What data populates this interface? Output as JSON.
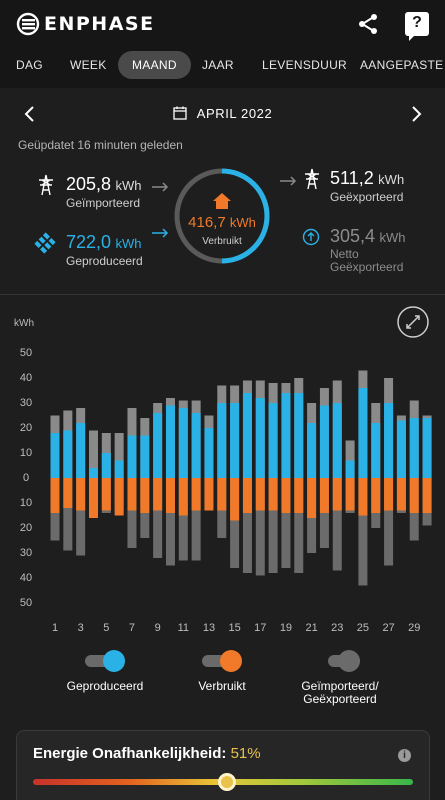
{
  "app": {
    "brand": "ENPHASE"
  },
  "tabs": [
    {
      "label": "DAG",
      "active": false
    },
    {
      "label": "WEEK",
      "active": false
    },
    {
      "label": "MAAND",
      "active": true
    },
    {
      "label": "JAAR",
      "active": false
    },
    {
      "label": "LEVENSDUUR",
      "active": false
    },
    {
      "label": "AANGEPASTE",
      "active": false
    }
  ],
  "period": {
    "label": "APRIL 2022"
  },
  "updated": "Geüpdatet 16 minuten geleden",
  "summary": {
    "imported": {
      "value": "205,8",
      "unit": "kWh",
      "label": "Geïmporteerd"
    },
    "produced": {
      "value": "722,0",
      "unit": "kWh",
      "label": "Geproduceerd"
    },
    "consumed": {
      "value": "416,7",
      "unit": "kWh",
      "label": "Verbruikt"
    },
    "exported": {
      "value": "511,2",
      "unit": "kWh",
      "label": "Geëxporteerd"
    },
    "net": {
      "value": "305,4",
      "unit": "kWh",
      "label1": "Netto",
      "label2": "Geëxporteerd"
    }
  },
  "colors": {
    "produced": "#2ab1e6",
    "consumed": "#f07a29",
    "grid": "#6b6b6b",
    "grid_light": "#8a8a8a",
    "ring_track": "#5a5a5a"
  },
  "legend": [
    {
      "label": "Geproduceerd",
      "on": true,
      "color": "#2ab1e6"
    },
    {
      "label": "Verbruikt",
      "on": true,
      "color": "#f07a29"
    },
    {
      "label": "Geïmporteerd/",
      "label2": "Geëxporteerd",
      "on": false,
      "color": "#6b6b6b"
    }
  ],
  "independence": {
    "title": "Energie Onafhankelijkheid:",
    "value": "51%",
    "fraction": 0.51
  },
  "chart_data": {
    "type": "bar",
    "ylabel": "kWh",
    "ylim": [
      -50,
      50
    ],
    "yticks": [
      50,
      40,
      30,
      20,
      10,
      0,
      10,
      20,
      30,
      40,
      50
    ],
    "xtick_labels": [
      "1",
      "3",
      "5",
      "7",
      "9",
      "11",
      "13",
      "15",
      "17",
      "19",
      "21",
      "23",
      "25",
      "27",
      "29"
    ],
    "categories": [
      1,
      2,
      3,
      4,
      5,
      6,
      7,
      8,
      9,
      10,
      11,
      12,
      13,
      14,
      15,
      16,
      17,
      18,
      19,
      20,
      21,
      22,
      23,
      24,
      25,
      26,
      27,
      28,
      29,
      30
    ],
    "series": [
      {
        "name": "Geproduceerd",
        "values": [
          18,
          19,
          22,
          4,
          10,
          7,
          17,
          17,
          26,
          29,
          28,
          26,
          20,
          30,
          30,
          34,
          32,
          30,
          34,
          34,
          22,
          29,
          30,
          7,
          36,
          22,
          30,
          23,
          24,
          24
        ]
      },
      {
        "name": "Geëxporteerd",
        "values": [
          25,
          27,
          28,
          19,
          18,
          18,
          28,
          24,
          30,
          32,
          31,
          31,
          25,
          37,
          37,
          39,
          39,
          38,
          38,
          40,
          30,
          36,
          39,
          15,
          43,
          30,
          40,
          25,
          31,
          25
        ]
      },
      {
        "name": "Verbruikt",
        "values": [
          -14,
          -12,
          -13,
          -16,
          -13,
          -15,
          -13,
          -14,
          -13,
          -14,
          -15,
          -13,
          -13,
          -13,
          -17,
          -14,
          -13,
          -13,
          -14,
          -14,
          -16,
          -14,
          -13,
          -13,
          -15,
          -14,
          -13,
          -13,
          -14,
          -14
        ]
      },
      {
        "name": "Geïmporteerd",
        "values": [
          -25,
          -29,
          -31,
          -15,
          -14,
          -13,
          -28,
          -24,
          -32,
          -35,
          -33,
          -33,
          -13,
          -24,
          -36,
          -38,
          -39,
          -38,
          -36,
          -38,
          -30,
          -28,
          -37,
          -14,
          -43,
          -20,
          -35,
          -14,
          -25,
          -19
        ]
      }
    ]
  }
}
